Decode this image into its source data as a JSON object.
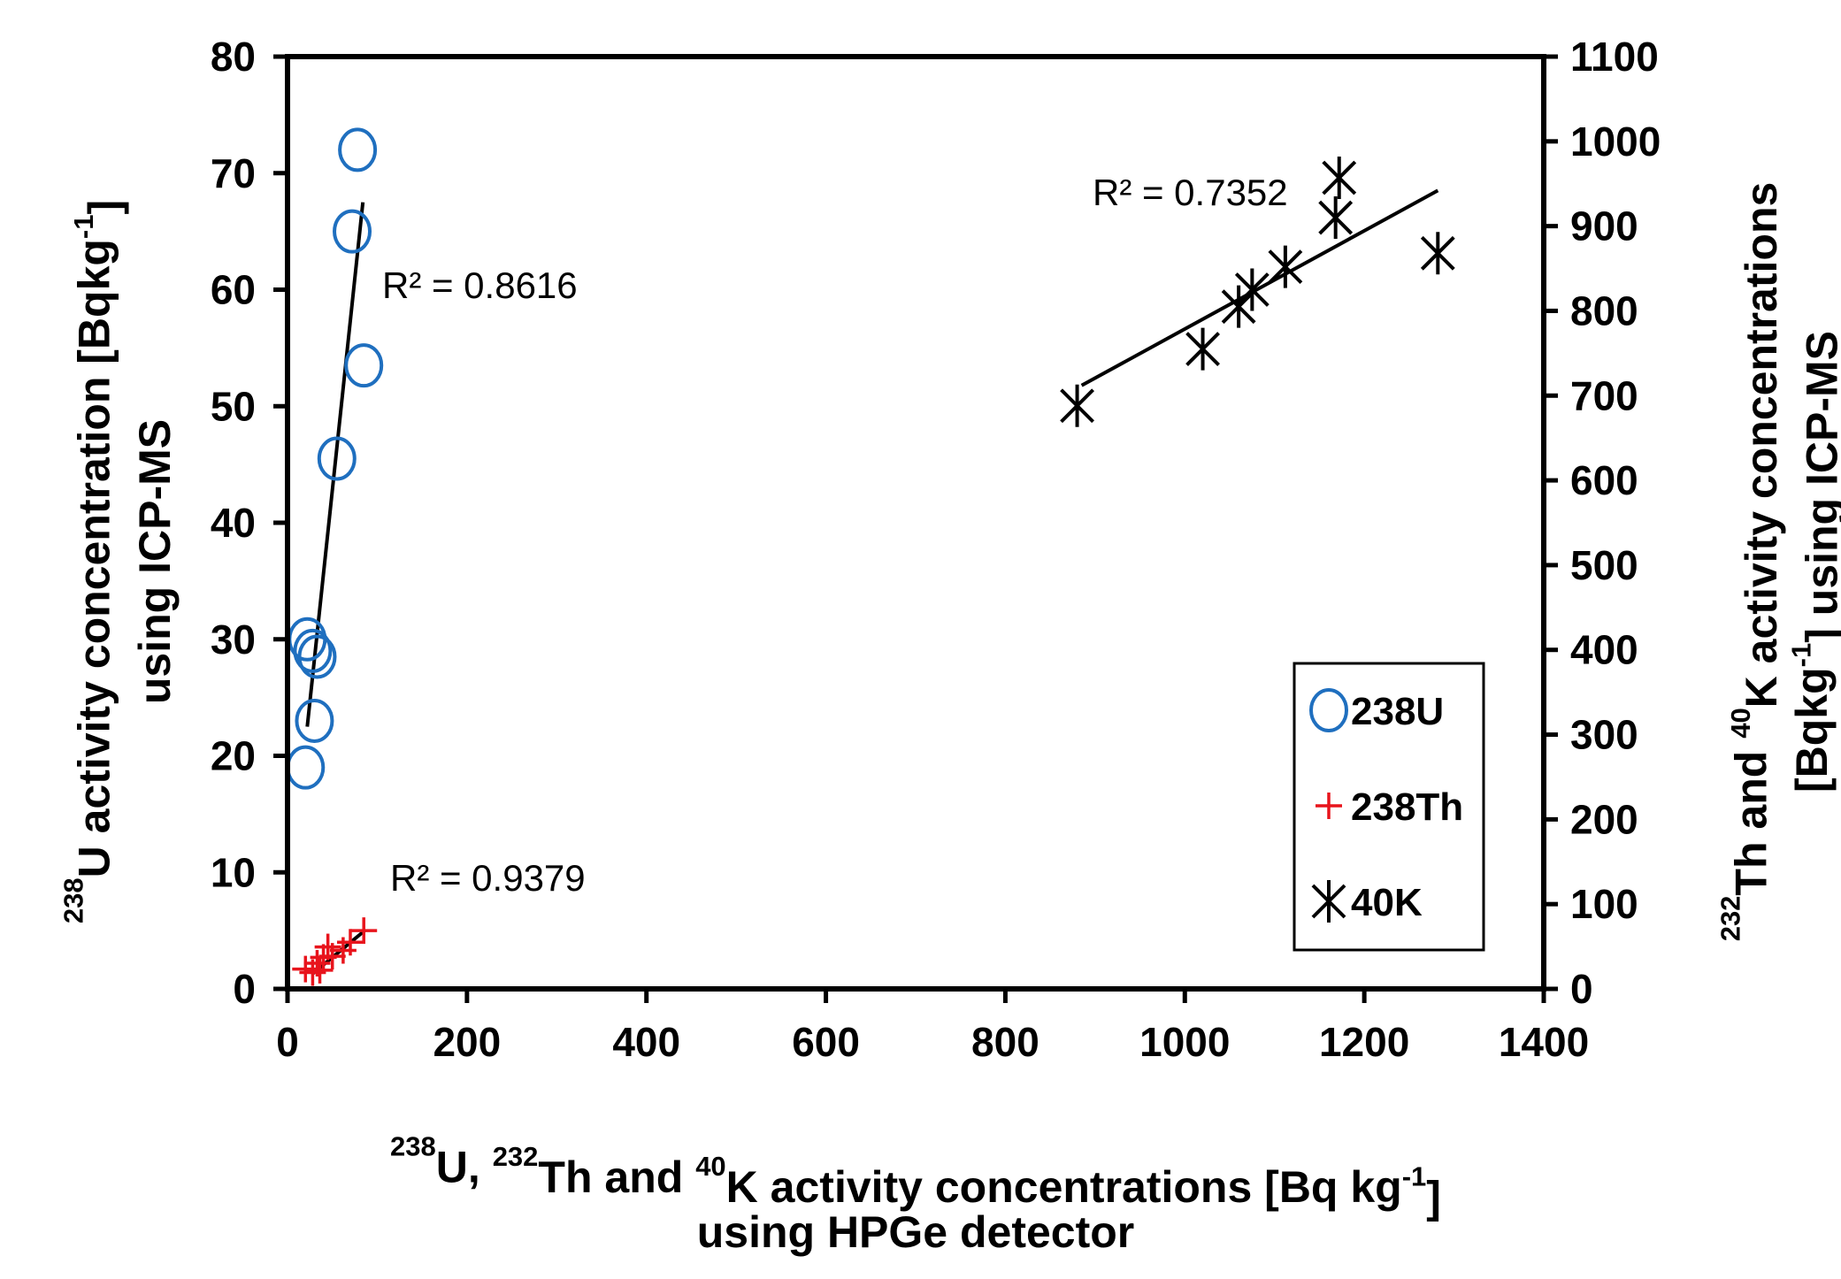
{
  "chart_data": {
    "type": "scatter",
    "x_axis": {
      "min": 0,
      "max": 1400,
      "step": 200,
      "ticks": [
        "0",
        "200",
        "400",
        "600",
        "800",
        "1000",
        "1200",
        "1400"
      ],
      "label_line1_parts": [
        {
          "text": "238",
          "sup": true
        },
        {
          "text": "U, ",
          "sup": false
        },
        {
          "text": "232",
          "sup": true
        },
        {
          "text": "Th and ",
          "sup": false
        },
        {
          "text": "40",
          "sup": true
        },
        {
          "text": "K activity concentrations [Bq kg",
          "sup": false
        },
        {
          "text": "-1",
          "sup": true
        },
        {
          "text": "]",
          "sup": false
        }
      ],
      "label_line2": "using HPGe detector"
    },
    "y_left": {
      "min": 0,
      "max": 80,
      "step": 10,
      "ticks": [
        "0",
        "10",
        "20",
        "30",
        "40",
        "50",
        "60",
        "70",
        "80"
      ],
      "label_line1_parts": [
        {
          "text": "238",
          "sup": true
        },
        {
          "text": "U activity concentration [Bqkg",
          "sup": false
        },
        {
          "text": "-1",
          "sup": true
        },
        {
          "text": "]",
          "sup": false
        }
      ],
      "label_line2": "using ICP-MS"
    },
    "y_right": {
      "min": 0,
      "max": 1100,
      "step": 100,
      "ticks": [
        "0",
        "100",
        "200",
        "300",
        "400",
        "500",
        "600",
        "700",
        "800",
        "900",
        "1000",
        "1100"
      ],
      "label_line1_parts": [
        {
          "text": "232",
          "sup": true
        },
        {
          "text": "Th and ",
          "sup": false
        },
        {
          "text": "40",
          "sup": true
        },
        {
          "text": "K activity concentrations",
          "sup": false
        }
      ],
      "label_line2_parts": [
        {
          "text": "[Bqkg",
          "sup": false
        },
        {
          "text": "-1",
          "sup": true
        },
        {
          "text": "] using ICP-MS",
          "sup": false
        }
      ]
    },
    "series": [
      {
        "name": "238U",
        "axis": "left",
        "marker": "circle",
        "color": "#1f6fbf",
        "points": [
          [
            20,
            19
          ],
          [
            30,
            23
          ],
          [
            22,
            30
          ],
          [
            28,
            29
          ],
          [
            33,
            28.5
          ],
          [
            55,
            45.5
          ],
          [
            72,
            65
          ],
          [
            78,
            72
          ],
          [
            85,
            53.5
          ]
        ],
        "trend": {
          "x1": 22,
          "y1": 22.5,
          "x2": 84,
          "y2": 67.5
        },
        "r2": "R² = 0.8616"
      },
      {
        "name": "238Th",
        "axis": "left",
        "marker": "plus",
        "color": "#e8141c",
        "points": [
          [
            20,
            1.7
          ],
          [
            28,
            1.4
          ],
          [
            33,
            2.2
          ],
          [
            36,
            1.6
          ],
          [
            40,
            2.7
          ],
          [
            45,
            3.6
          ],
          [
            50,
            2.8
          ],
          [
            62,
            3.3
          ],
          [
            70,
            4.0
          ],
          [
            85,
            5.0
          ]
        ],
        "trend": {
          "x1": 28,
          "y1": 1.3,
          "x2": 86,
          "y2": 5.0
        },
        "r2": "R² = 0.9379"
      },
      {
        "name": "40K",
        "axis": "right",
        "marker": "asterisk",
        "color": "#000000",
        "points": [
          [
            880,
            688
          ],
          [
            1020,
            755
          ],
          [
            1060,
            805
          ],
          [
            1075,
            825
          ],
          [
            1112,
            852
          ],
          [
            1168,
            910
          ],
          [
            1172,
            957
          ],
          [
            1282,
            868
          ]
        ],
        "trend": {
          "x1": 885,
          "y1": 712,
          "x2": 1282,
          "y2": 942
        },
        "r2": "R² = 0.7352"
      }
    ],
    "legend": {
      "placement": "bottom-right",
      "items": [
        "238U",
        "238Th",
        "40K"
      ]
    }
  }
}
